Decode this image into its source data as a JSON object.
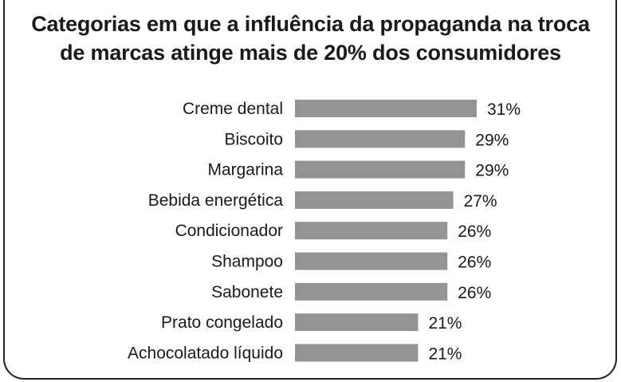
{
  "chart_data": {
    "type": "bar",
    "orientation": "horizontal",
    "title_lines": [
      "Categorias em que a influência da propaganda na troca",
      "de marcas atinge mais de 20% dos consumidores"
    ],
    "categories": [
      "Creme dental",
      "Biscoito",
      "Margarina",
      "Bebida energética",
      "Condicionador",
      "Shampoo",
      "Sabonete",
      "Prato congelado",
      "Achocolatado líquido"
    ],
    "values": [
      31,
      29,
      29,
      27,
      26,
      26,
      26,
      21,
      21
    ],
    "value_labels": [
      "31%",
      "29%",
      "29%",
      "27%",
      "26%",
      "26%",
      "26%",
      "21%",
      "21%"
    ],
    "xlim": [
      0,
      31
    ],
    "grid": false,
    "legend": "none",
    "bar_color": "#939393"
  }
}
